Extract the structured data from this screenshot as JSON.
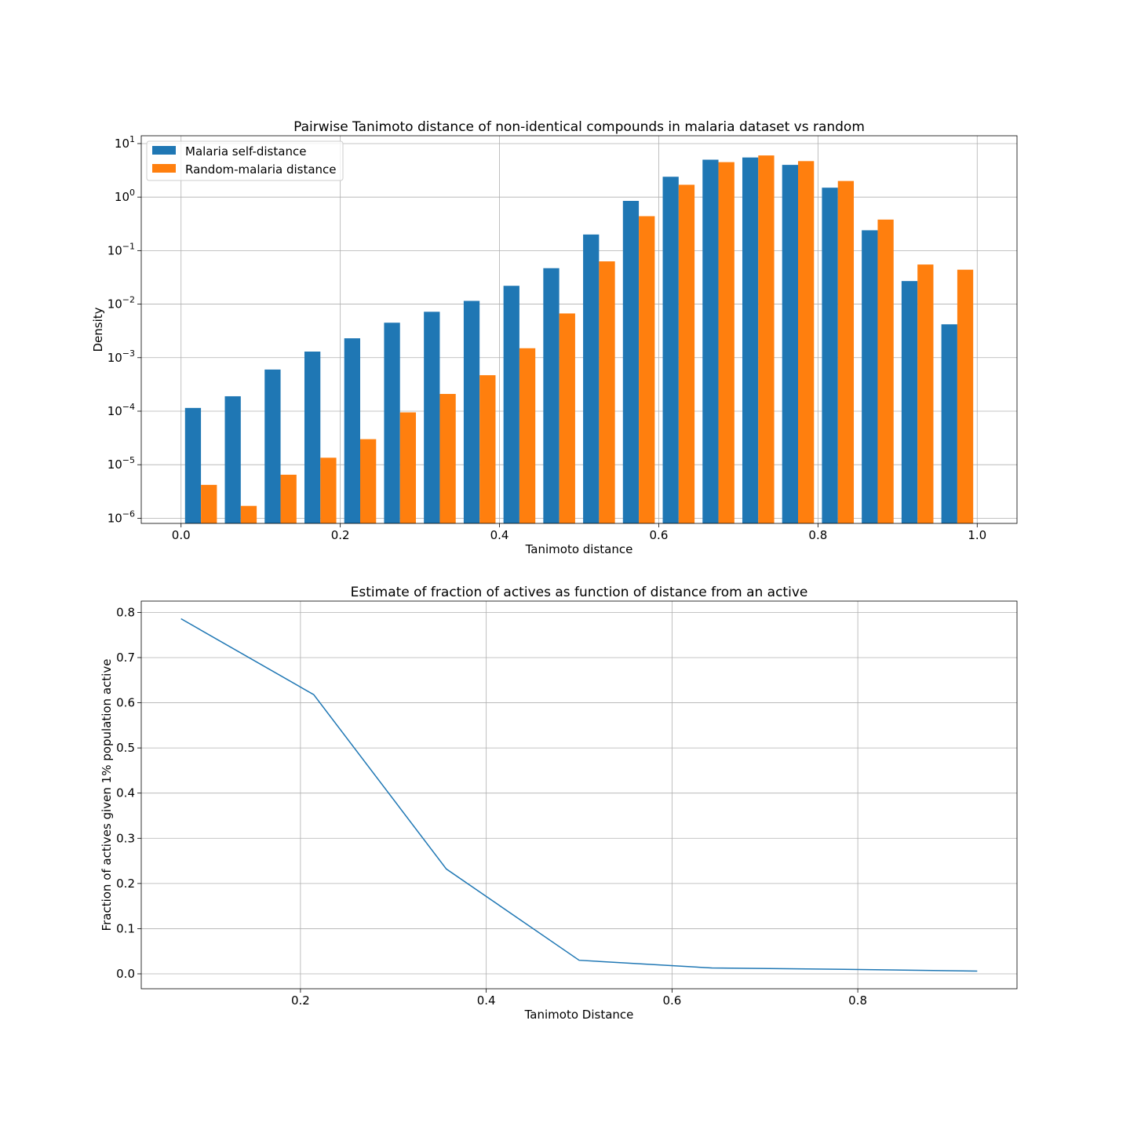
{
  "figure": {
    "background": "#ffffff"
  },
  "chart_data": [
    {
      "type": "bar",
      "title": "Pairwise Tanimoto distance of non-identical compounds in malaria dataset vs random",
      "xlabel": "Tanimoto distance",
      "ylabel": "Density",
      "yscale": "log",
      "xlim": [
        -0.05,
        1.05
      ],
      "ylim": [
        8e-07,
        14
      ],
      "grid": true,
      "legend_position": "upper-left",
      "x_ticks": [
        {
          "value": 0.0,
          "label": "0.0"
        },
        {
          "value": 0.2,
          "label": "0.2"
        },
        {
          "value": 0.4,
          "label": "0.4"
        },
        {
          "value": 0.6,
          "label": "0.6"
        },
        {
          "value": 0.8,
          "label": "0.8"
        },
        {
          "value": 1.0,
          "label": "1.0"
        }
      ],
      "y_ticks": [
        {
          "value": 1e-06,
          "base": "10",
          "exp": "−6"
        },
        {
          "value": 1e-05,
          "base": "10",
          "exp": "−5"
        },
        {
          "value": 0.0001,
          "base": "10",
          "exp": "−4"
        },
        {
          "value": 0.001,
          "base": "10",
          "exp": "−3"
        },
        {
          "value": 0.01,
          "base": "10",
          "exp": "−2"
        },
        {
          "value": 0.1,
          "base": "10",
          "exp": "−1"
        },
        {
          "value": 1,
          "base": "10",
          "exp": "0"
        },
        {
          "value": 10,
          "base": "10",
          "exp": "1"
        }
      ],
      "bin_edges": [
        0.0,
        0.05,
        0.1,
        0.15,
        0.2,
        0.25,
        0.3,
        0.35,
        0.4,
        0.45,
        0.5,
        0.55,
        0.6,
        0.65,
        0.7,
        0.75,
        0.8,
        0.85,
        0.9,
        0.95,
        1.0
      ],
      "series": [
        {
          "name": "Malaria self-distance",
          "color": "#1f77b4",
          "values": [
            0.000115,
            0.00019,
            0.0006,
            0.0013,
            0.0023,
            0.0045,
            0.0072,
            0.0115,
            0.022,
            0.047,
            0.2,
            0.85,
            2.4,
            5.0,
            5.5,
            4.0,
            1.5,
            0.24,
            0.027,
            0.0042
          ]
        },
        {
          "name": "Random-malaria distance",
          "color": "#ff7f0e",
          "values": [
            4.2e-06,
            1.7e-06,
            6.5e-06,
            1.35e-05,
            3e-05,
            9.5e-05,
            0.00021,
            0.00047,
            0.0015,
            0.0067,
            0.063,
            0.44,
            1.7,
            4.5,
            6.0,
            4.7,
            2.0,
            0.38,
            0.055,
            0.044
          ]
        }
      ]
    },
    {
      "type": "line",
      "title": "Estimate of fraction of actives as function of distance from an active",
      "xlabel": "Tanimoto Distance",
      "ylabel": "Fraction of actives given 1% population active",
      "xlim": [
        0.0286,
        0.9714
      ],
      "ylim": [
        -0.033,
        0.825
      ],
      "grid": true,
      "x_ticks": [
        {
          "value": 0.2,
          "label": "0.2"
        },
        {
          "value": 0.4,
          "label": "0.4"
        },
        {
          "value": 0.6,
          "label": "0.6"
        },
        {
          "value": 0.8,
          "label": "0.8"
        }
      ],
      "y_ticks": [
        {
          "value": 0.0,
          "label": "0.0"
        },
        {
          "value": 0.1,
          "label": "0.1"
        },
        {
          "value": 0.2,
          "label": "0.2"
        },
        {
          "value": 0.3,
          "label": "0.3"
        },
        {
          "value": 0.4,
          "label": "0.4"
        },
        {
          "value": 0.5,
          "label": "0.5"
        },
        {
          "value": 0.6,
          "label": "0.6"
        },
        {
          "value": 0.7,
          "label": "0.7"
        },
        {
          "value": 0.8,
          "label": "0.8"
        }
      ],
      "series": [
        {
          "color": "#1f77b4",
          "x": [
            0.0714,
            0.2143,
            0.3571,
            0.5,
            0.6429,
            0.7857,
            0.9286
          ],
          "y": [
            0.786,
            0.618,
            0.232,
            0.03,
            0.013,
            0.01,
            0.006
          ]
        }
      ]
    }
  ]
}
